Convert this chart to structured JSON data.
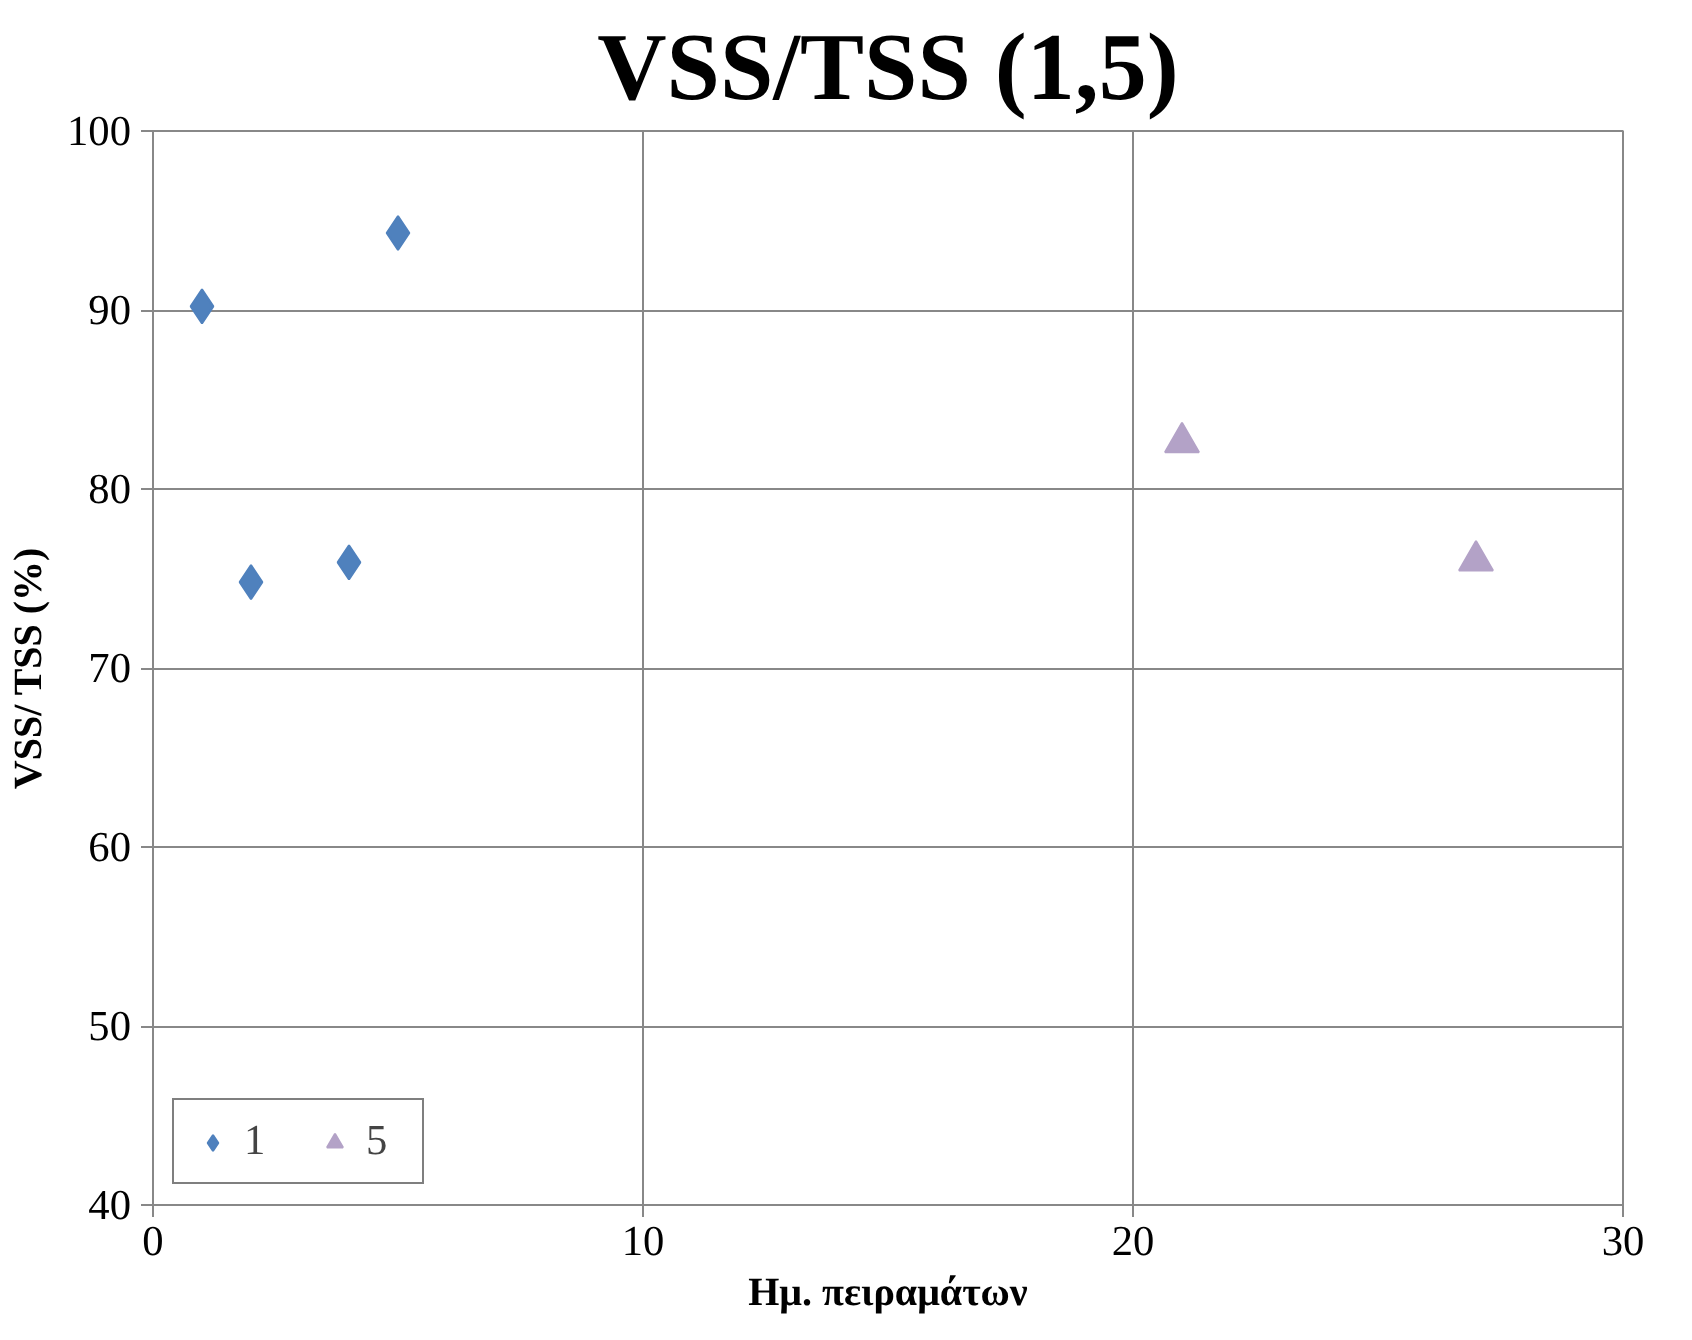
{
  "chart_data": {
    "type": "scatter",
    "title": "VSS/TSS (1,5)",
    "xlabel": "Ημ. πειραμάτων",
    "ylabel": "VSS/ TSS (%)",
    "xlim": [
      0,
      30
    ],
    "xticks": [
      0,
      10,
      20,
      30
    ],
    "ylim": [
      40,
      100
    ],
    "yticks": [
      40,
      50,
      60,
      70,
      80,
      90,
      100
    ],
    "grid": true,
    "legend": "bottom left",
    "series": [
      {
        "name": "1",
        "color": "#4f81bd",
        "marker": "diamond",
        "x": [
          1,
          2,
          4,
          5
        ],
        "values": [
          90.2,
          74.8,
          75.9,
          94.3
        ]
      },
      {
        "name": "5",
        "color": "#b3a2c7",
        "marker": "triangle",
        "x": [
          21,
          27
        ],
        "values": [
          82.6,
          76.0
        ]
      }
    ]
  }
}
